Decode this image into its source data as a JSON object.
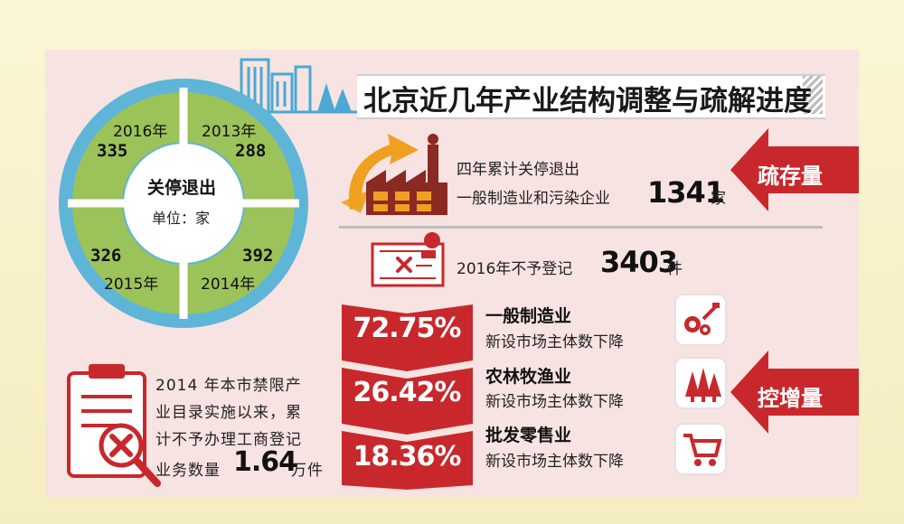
{
  "title": "北京近几年产业结构调整与疏解进度",
  "ring": {
    "center_title": "关停退出",
    "center_unit": "单位：家",
    "segments": [
      {
        "year": "2016年",
        "value": "335"
      },
      {
        "year": "2013年",
        "value": "288"
      },
      {
        "year": "2015年",
        "value": "326"
      },
      {
        "year": "2014年",
        "value": "392"
      }
    ]
  },
  "closures": {
    "line1": "四年累计关停退出",
    "line2": "一般制造业和污染企业",
    "value": "1341",
    "unit": "家"
  },
  "no_register": {
    "prefix": "2016年不予登记",
    "value": "3403",
    "unit": "件"
  },
  "labels": {
    "stock": "疏存量",
    "increment": "控增量"
  },
  "categories": [
    {
      "pct": "72.75%",
      "name": "一般制造业",
      "desc": "新设市场主体数下降",
      "icon": "factory-gears-icon"
    },
    {
      "pct": "26.42%",
      "name": "农林牧渔业",
      "desc": "新设市场主体数下降",
      "icon": "trees-icon"
    },
    {
      "pct": "18.36%",
      "name": "批发零售业",
      "desc": "新设市场主体数下降",
      "icon": "shopping-cart-icon"
    }
  ],
  "note": {
    "line1": "2014 年本市禁限产",
    "line2": "业目录实施以来，累",
    "line3": "计不予办理工商登记",
    "line4_prefix": "业务数量",
    "value": "1.64",
    "unit": "万件"
  },
  "colors": {
    "ring_green": "#9cc25a",
    "ring_blue": "#5fb5d8",
    "accent_red": "#c8282c",
    "orange": "#f0a020",
    "panel_pink": "#f7e3e1"
  }
}
